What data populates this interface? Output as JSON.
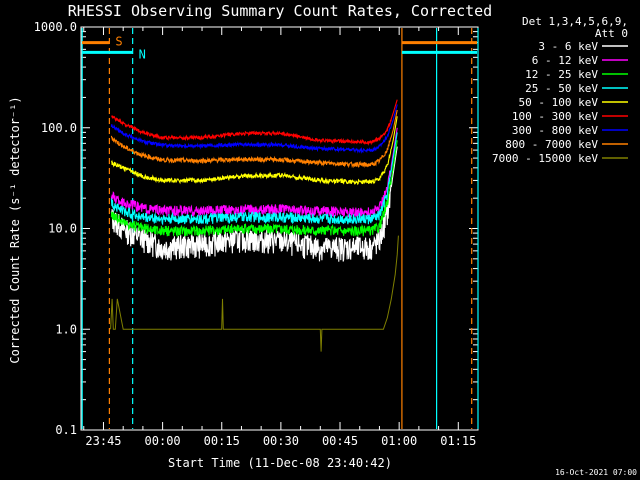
{
  "chart_data": {
    "type": "line",
    "title": "RHESSI Observing Summary Count Rates, Corrected",
    "xlabel": "Start Time (11-Dec-08 23:40:42)",
    "ylabel": "Corrected Count Rate (s⁻¹ detector⁻¹)",
    "yscale": "log",
    "ylim": [
      0.1,
      1000.0
    ],
    "yticks": [
      "0.1",
      "1.0",
      "10.0",
      "100.0",
      "1000.0"
    ],
    "xlim_minutes": [
      -20.7,
      80.0
    ],
    "xticks": [
      {
        "label": "23:45",
        "minute": -15
      },
      {
        "label": "00:00",
        "minute": 0
      },
      {
        "label": "00:15",
        "minute": 15
      },
      {
        "label": "00:30",
        "minute": 30
      },
      {
        "label": "00:45",
        "minute": 45
      },
      {
        "label": "01:00",
        "minute": 60
      },
      {
        "label": "01:15",
        "minute": 75
      }
    ],
    "legend": {
      "header": [
        "Det 1,3,4,5,6,9,",
        "Att 0"
      ],
      "placement": "right"
    },
    "flags": [
      {
        "label": "S",
        "color": "#ff8000",
        "level": 700
      },
      {
        "label": "N",
        "color": "#00ffff",
        "level": 560
      }
    ],
    "markers": [
      {
        "minute": -13.5,
        "color": "#ff8000",
        "style": "dashed"
      },
      {
        "minute": -7.6,
        "color": "#00ffff",
        "style": "dashed"
      },
      {
        "minute": -20.4,
        "color": "#00ffff",
        "style": "solid"
      },
      {
        "minute": 60.7,
        "color": "#ff8000",
        "style": "solid"
      },
      {
        "minute": 69.5,
        "color": "#00ffff",
        "style": "solid"
      },
      {
        "minute": 80.0,
        "color": "#00ffff",
        "style": "solid"
      },
      {
        "minute": 78.4,
        "color": "#ff8000",
        "style": "dashed"
      }
    ],
    "series": [
      {
        "name": "3 - 6 keV",
        "color": "#ffffff",
        "x": [
          -13,
          -10,
          -5,
          0,
          10,
          20,
          30,
          40,
          50,
          53,
          55,
          57,
          58.5,
          59.5
        ],
        "y": [
          13,
          10,
          8,
          6.5,
          7,
          8,
          7.5,
          6.5,
          6.5,
          6.5,
          7.5,
          14,
          35,
          65
        ]
      },
      {
        "name": "6 - 12 keV",
        "color": "#ff00ff",
        "x": [
          -13,
          -10,
          -5,
          0,
          10,
          20,
          30,
          40,
          50,
          53,
          55,
          57,
          58.5,
          59.5
        ],
        "y": [
          21,
          18,
          16,
          15,
          15,
          15.5,
          15.5,
          15,
          14.5,
          14.5,
          16,
          25,
          55,
          100
        ]
      },
      {
        "name": "12 - 25 keV",
        "color": "#00ff00",
        "x": [
          -13,
          -10,
          -5,
          0,
          10,
          20,
          30,
          40,
          50,
          53,
          55,
          57,
          58.5,
          59.5
        ],
        "y": [
          14,
          11.5,
          10,
          9.5,
          9.5,
          10,
          10,
          9.5,
          9.5,
          9.5,
          10.5,
          18,
          40,
          75
        ]
      },
      {
        "name": "25 - 50 keV",
        "color": "#00ffff",
        "x": [
          -13,
          -10,
          -5,
          0,
          10,
          20,
          30,
          40,
          50,
          53,
          55,
          57,
          58.5,
          59.5
        ],
        "y": [
          18,
          15,
          13,
          12.5,
          12.5,
          13,
          13,
          12.5,
          12.5,
          12.5,
          13.5,
          22,
          50,
          90
        ]
      },
      {
        "name": "50 - 100 keV",
        "color": "#ffff00",
        "x": [
          -13,
          -10,
          -5,
          0,
          10,
          20,
          30,
          40,
          50,
          53,
          55,
          57,
          58.5,
          59.5
        ],
        "y": [
          45,
          40,
          33,
          30,
          30,
          33,
          34,
          30,
          29,
          29,
          31,
          42,
          75,
          130
        ]
      },
      {
        "name": "100 - 300 keV",
        "color": "#ff0000",
        "x": [
          -13,
          -10,
          -5,
          0,
          10,
          20,
          30,
          40,
          50,
          53,
          55,
          57,
          58.5,
          59.5
        ],
        "y": [
          130,
          110,
          90,
          80,
          80,
          88,
          88,
          75,
          72,
          72,
          78,
          95,
          140,
          190
        ]
      },
      {
        "name": "300 - 800 keV",
        "color": "#0000ff",
        "x": [
          -13,
          -10,
          -5,
          0,
          10,
          20,
          30,
          40,
          50,
          53,
          55,
          57,
          58.5,
          59.5
        ],
        "y": [
          105,
          88,
          73,
          67,
          66,
          68,
          67,
          62,
          60,
          60,
          65,
          82,
          120,
          170
        ]
      },
      {
        "name": "800 - 7000 keV",
        "color": "#ff8000",
        "x": [
          -13,
          -10,
          -5,
          0,
          10,
          20,
          30,
          40,
          50,
          53,
          55,
          57,
          58.5,
          59.5
        ],
        "y": [
          80,
          65,
          53,
          48,
          47,
          49,
          48,
          45,
          43,
          43,
          47,
          60,
          95,
          150
        ]
      },
      {
        "name": "7000 - 15000 keV",
        "color": "#808000",
        "x": [
          -13.2,
          -12.8,
          -12.5,
          -12,
          -11.5,
          -10,
          -5,
          0,
          10,
          15,
          15.2,
          15.4,
          20,
          25,
          30,
          35,
          38,
          40,
          40.2,
          40.4,
          45,
          50,
          54,
          55,
          56,
          57,
          58,
          59,
          59.5,
          59.8
        ],
        "y": [
          1.0,
          2.0,
          1.0,
          1.0,
          2.0,
          1.0,
          1.0,
          1.0,
          1.0,
          1.0,
          2.0,
          1.0,
          1.0,
          1.0,
          1.0,
          1.0,
          1.0,
          1.0,
          0.6,
          1.0,
          1.0,
          1.0,
          1.0,
          1.0,
          1.0,
          1.3,
          2.0,
          3.5,
          5.5,
          8.5
        ]
      }
    ]
  },
  "timestamp": "16-Oct-2021 07:00"
}
